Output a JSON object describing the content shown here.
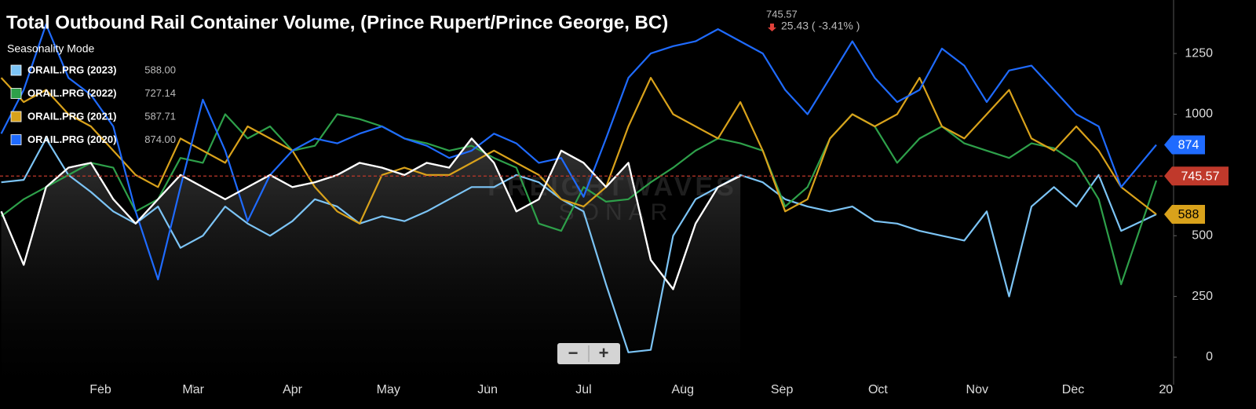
{
  "chart_data": {
    "type": "line",
    "title": "Total Outbound Rail Container Volume, (Prince Rupert/Prince George, BC)",
    "last_value": 745.57,
    "change_text": "25.43 ( -3.41% )",
    "mode_label": "Seasonality Mode",
    "watermark": [
      "FREIGHTWAVES",
      "SONAR"
    ],
    "zoom_controls": [
      "−",
      "+"
    ],
    "xlim": [
      0.6,
      367.4
    ],
    "ylim": [
      -113,
      1470
    ],
    "xticks": [
      {
        "value": 32,
        "label": "Feb"
      },
      {
        "value": 61,
        "label": "Mar"
      },
      {
        "value": 92,
        "label": "Apr"
      },
      {
        "value": 122,
        "label": "May"
      },
      {
        "value": 153,
        "label": "Jun"
      },
      {
        "value": 183,
        "label": "Jul"
      },
      {
        "value": 214,
        "label": "Aug"
      },
      {
        "value": 245,
        "label": "Sep"
      },
      {
        "value": 275,
        "label": "Oct"
      },
      {
        "value": 306,
        "label": "Nov"
      },
      {
        "value": 336,
        "label": "Dec"
      },
      {
        "value": 365,
        "label": "20"
      }
    ],
    "yticks": [
      0,
      250,
      500,
      1000,
      1250
    ],
    "x": [
      1,
      8,
      15,
      22,
      29,
      36,
      43,
      50,
      57,
      64,
      71,
      78,
      85,
      92,
      99,
      106,
      113,
      120,
      127,
      134,
      141,
      148,
      155,
      162,
      169,
      176,
      183,
      190,
      197,
      204,
      211,
      218,
      225,
      232,
      239,
      246,
      253,
      260,
      267,
      274,
      281,
      288,
      295,
      302,
      309,
      316,
      323,
      330,
      337,
      344,
      351,
      362
    ],
    "current": {
      "color": "#ffffff",
      "values": [
        600,
        380,
        700,
        780,
        800,
        650,
        550,
        650,
        750,
        700,
        650,
        700,
        750,
        700,
        720,
        750,
        800,
        780,
        750,
        800,
        780,
        900,
        800,
        600,
        650,
        850,
        800,
        700,
        800,
        400,
        280,
        550,
        700,
        745.57,
        null,
        null,
        null,
        null,
        null,
        null,
        null,
        null,
        null,
        null,
        null,
        null,
        null,
        null,
        null,
        null,
        null,
        null
      ]
    },
    "series": [
      {
        "name": "ORAIL.PRG (2023)",
        "legend_value": "588.00",
        "color": "#7cc4f5",
        "values": [
          720,
          730,
          900,
          750,
          680,
          600,
          550,
          620,
          450,
          500,
          620,
          550,
          500,
          560,
          650,
          620,
          550,
          580,
          560,
          600,
          650,
          700,
          700,
          750,
          720,
          650,
          600,
          300,
          20,
          30,
          500,
          650,
          700,
          750,
          720,
          650,
          620,
          600,
          620,
          560,
          550,
          520,
          500,
          480,
          600,
          250,
          620,
          700,
          620,
          750,
          520,
          588
        ]
      },
      {
        "name": "ORAIL.PRG (2022)",
        "legend_value": "727.14",
        "color": "#2ea04a",
        "values": [
          580,
          650,
          700,
          750,
          800,
          780,
          600,
          650,
          820,
          800,
          1000,
          900,
          950,
          850,
          870,
          1000,
          980,
          950,
          900,
          880,
          850,
          870,
          820,
          780,
          550,
          520,
          700,
          640,
          650,
          720,
          780,
          850,
          900,
          880,
          850,
          620,
          700,
          900,
          1000,
          950,
          800,
          900,
          950,
          880,
          850,
          820,
          880,
          860,
          800,
          650,
          300,
          727
        ]
      },
      {
        "name": "ORAIL.PRG (2021)",
        "legend_value": "587.71",
        "tag": "588",
        "color": "#d9a21b",
        "values": [
          1150,
          1050,
          1100,
          1000,
          950,
          850,
          750,
          700,
          900,
          850,
          800,
          950,
          900,
          850,
          700,
          600,
          550,
          750,
          780,
          750,
          750,
          800,
          850,
          800,
          750,
          650,
          620,
          700,
          950,
          1150,
          1000,
          950,
          900,
          1050,
          850,
          600,
          650,
          900,
          1000,
          950,
          1000,
          1150,
          950,
          900,
          1000,
          1100,
          900,
          850,
          950,
          850,
          700,
          588
        ]
      },
      {
        "name": "ORAIL.PRG (2020)",
        "legend_value": "874.00",
        "tag": "874",
        "color": "#1f6bff",
        "values": [
          920,
          1100,
          1370,
          1150,
          1080,
          950,
          600,
          320,
          700,
          1060,
          850,
          560,
          750,
          850,
          900,
          880,
          920,
          950,
          900,
          870,
          820,
          850,
          920,
          880,
          800,
          820,
          660,
          900,
          1150,
          1250,
          1280,
          1300,
          1350,
          1300,
          1250,
          1100,
          1000,
          1150,
          1300,
          1150,
          1050,
          1100,
          1270,
          1200,
          1050,
          1180,
          1200,
          1100,
          1000,
          950,
          700,
          874
        ]
      }
    ]
  }
}
